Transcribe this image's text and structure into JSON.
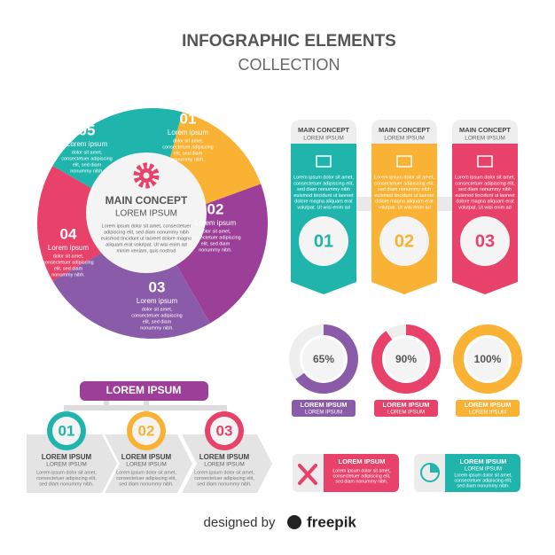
{
  "header": {
    "title": "INFOGRAPHIC ELEMENTS",
    "subtitle": "COLLECTION"
  },
  "cycle": {
    "center": {
      "title": "MAIN CONCEPT",
      "subtitle": "LOREM IPSUM",
      "lines": [
        "Lorem ipsum dolor sit amet, consectetuer",
        "adipiscing elit, sed diam nonummy nibh",
        "euismod tincidunt ut laoreet dolore magna",
        "aliquam erat volutpat. Ut wisi enim ad",
        "minim veniam, quis nostrud"
      ]
    },
    "segments": [
      {
        "number": "01",
        "title": "Lorem ipsum",
        "lines": [
          "dolor sit amet,",
          "consectetuer adipiscing",
          "elit, sed diam",
          "nonummy nibh."
        ]
      },
      {
        "number": "02",
        "title": "Lorem ipsum",
        "lines": [
          "dolor sit amet,",
          "consectetuer adipiscing",
          "elit, sed diam",
          "nonummy nibh."
        ]
      },
      {
        "number": "03",
        "title": "Lorem ipsum",
        "lines": [
          "dolor sit amet,",
          "consectetuer adipiscing",
          "elit, sed diam",
          "nonummy nibh."
        ]
      },
      {
        "number": "04",
        "title": "Lorem ipsum",
        "lines": [
          "dolor sit amet,",
          "consectetuer adipiscing",
          "elit, sed diam",
          "nonummy nibh."
        ]
      },
      {
        "number": "05",
        "title": "Lorem ipsum",
        "lines": [
          "dolor sit amet,",
          "consectetuer adipiscing",
          "elit, sed diam",
          "nonummy nibh."
        ]
      }
    ]
  },
  "cards": [
    {
      "title": "MAIN CONCEPT",
      "subtitle": "LOREM IPSUM",
      "number": "01",
      "lines": [
        "Lorem ipsum dolor sit amet,",
        "consectetuer adipiscing elit,",
        "sed diam nonummy nibh",
        "euismod tincidunt ut laoreet",
        "dolore magna aliquam erat",
        "volutpat. Ut wisi enim ad"
      ]
    },
    {
      "title": "MAIN CONCEPT",
      "subtitle": "LOREM IPSUM",
      "number": "02",
      "lines": [
        "Lorem ipsum dolor sit amet,",
        "consectetuer adipiscing elit,",
        "sed diam nonummy nibh",
        "euismod tincidunt ut laoreet",
        "dolore magna aliquam erat",
        "volutpat. Ut wisi enim ad"
      ]
    },
    {
      "title": "MAIN CONCEPT",
      "subtitle": "LOREM IPSUM",
      "number": "03",
      "lines": [
        "Lorem ipsum dolor sit amet,",
        "consectetuer adipiscing elit,",
        "sed diam nonummy nibh",
        "euismod tincidunt ut laoreet",
        "dolore magna aliquam erat",
        "volutpat. Ut wisi enim ad"
      ]
    }
  ],
  "gauges": [
    {
      "value": 65,
      "value_label": "65%",
      "title": "LOREM IPSUM",
      "subtitle": "LOREM IPSUM"
    },
    {
      "value": 90,
      "value_label": "90%",
      "title": "LOREM IPSUM",
      "subtitle": "LOREM IPSUM"
    },
    {
      "value": 100,
      "value_label": "100%",
      "title": "LOREM IPSUM",
      "subtitle": "LOREM IPSUM"
    }
  ],
  "process": {
    "banner": "LOREM IPSUM",
    "steps": [
      {
        "number": "01",
        "title": "LOREM IPSUM",
        "subtitle": "LOREM IPSUM",
        "lines": [
          "Lorem ipsum dolor sit amet,",
          "consectetuer adipiscing elit,",
          "sed diam nonummy nibh."
        ]
      },
      {
        "number": "02",
        "title": "LOREM IPSUM",
        "subtitle": "LOREM IPSUM",
        "lines": [
          "Lorem ipsum dolor sit amet,",
          "consectetuer adipiscing elit,",
          "sed diam nonummy nibh."
        ]
      },
      {
        "number": "03",
        "title": "LOREM IPSUM",
        "subtitle": "LOREM IPSUM",
        "lines": [
          "Lorem ipsum dolor sit amet,",
          "consectetuer adipiscing elit,",
          "sed diam nonummy nibh."
        ]
      }
    ]
  },
  "tags": [
    {
      "title": "LOREM IPSUM",
      "lines": [
        "Lorem ipsum dolor sit amet,",
        "consectetuer adipiscing elit,",
        "sed diam nonummy nibh."
      ]
    },
    {
      "title": "LOREM IPSUM",
      "subtitle": "LOREM IPSUM",
      "lines": [
        "Lorem ipsum dolor sit amet,",
        "consectetuer adipiscing elit,",
        "sed diam nonummy nibh."
      ]
    }
  ],
  "footer": {
    "prefix": "designed by",
    "brand": "freepik"
  }
}
